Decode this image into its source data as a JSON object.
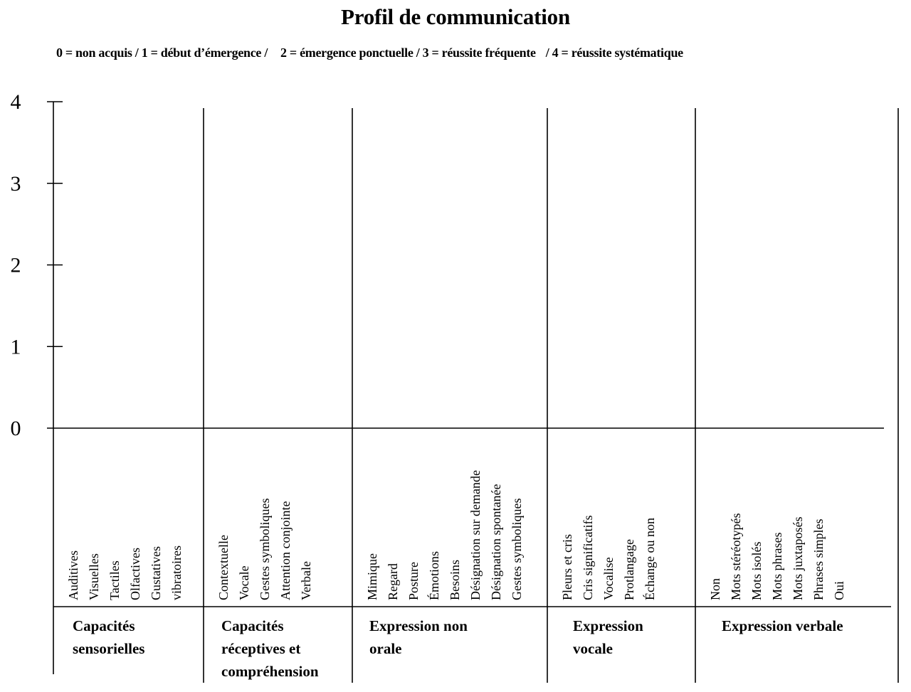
{
  "title": "Profil de communication",
  "legend": [
    "0 = non acquis  / 1 = début d’émergence /",
    "2 = émergence ponctuelle  / 3 = réussite fréquente",
    "/ 4 = réussite systématique"
  ],
  "chart_data": {
    "type": "bar",
    "title": "Profil de communication",
    "ylim": [
      0,
      4
    ],
    "yticks": [
      "0",
      "1",
      "2",
      "3",
      "4"
    ],
    "groups": [
      {
        "name": "Capacités sensorielles",
        "label_lines": [
          "Capacités",
          "sensorielles"
        ],
        "items": [
          "Auditives",
          "Visuelles",
          "Tactiles",
          "Olfactives",
          "Gustatives",
          "vibratoires"
        ]
      },
      {
        "name": "Capacités réceptives et compréhension",
        "label_lines": [
          "Capacités",
          "réceptives et",
          "compréhension"
        ],
        "items": [
          "Contextuelle",
          "Vocale",
          "Gestes symboliques",
          "Attention conjointe",
          "Verbale"
        ]
      },
      {
        "name": "Expression non orale",
        "label_lines": [
          "Expression non",
          "orale"
        ],
        "items": [
          "Mimique",
          "Regard",
          "Posture",
          "Émotions",
          "Besoins",
          "Désignation sur demande",
          "Désignation spontanée",
          "Gestes symboliques"
        ]
      },
      {
        "name": "Expression vocale",
        "label_lines": [
          "Expression",
          "vocale"
        ],
        "items": [
          "Pleurs et cris",
          "Cris significatifs",
          "Vocalise",
          "Protlangage",
          "Échange ou non"
        ]
      },
      {
        "name": "Expression verbale",
        "label_lines": [
          "Expression verbale"
        ],
        "items": [
          "Non",
          "Mots stéréotypés",
          "Mots isolés",
          "Mots phrases",
          "Mots juxtaposés",
          "Phrases simples",
          "Oui"
        ]
      }
    ],
    "values": null
  }
}
